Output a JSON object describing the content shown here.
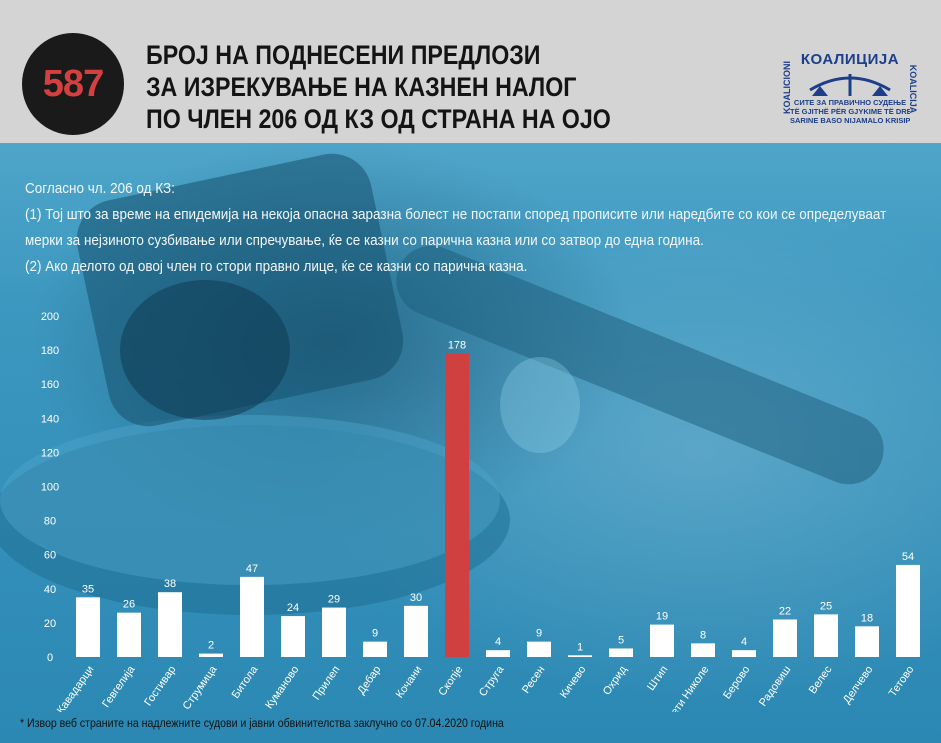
{
  "header": {
    "badge_number": "587",
    "title_lines": [
      "БРОЈ НА ПОДНЕСЕНИ ПРЕДЛОЗИ",
      "ЗА ИЗРЕКУВАЊЕ НА КАЗНЕН НАЛОГ",
      "ПО ЧЛЕН 206 ОД КЗ ОД СТРАНА НА ОЈО"
    ],
    "logo": {
      "name": "КОАЛИЦИЈА",
      "side_left": "KOALICIONI",
      "side_right": "KOALICIJA",
      "tagline_lines": [
        "СИТЕ ЗА ПРАВИЧНО СУДЕЊЕ",
        "TË GJITHË PËR GJYKIME TË DREJTA",
        "SARINE BASO NIJAMALO KRISIPE"
      ]
    }
  },
  "description": {
    "lines": [
      "Согласно чл. 206 од КЗ:",
      "(1) Тој што за време на епидемија на некоја опасна заразна болест не постапи според прописите или наредбите со кои се определуваат",
      "мерки за нејзиното сузбивање или спречување, ќе се казни со парична казна или со затвор до една година.",
      "(2) Ако делото од овој член го стори правно лице, ќе се казни со парична казна."
    ]
  },
  "chart_data": {
    "type": "bar",
    "categories": [
      "Кавадарци",
      "Гевгелија",
      "Гостивар",
      "Струмица",
      "Битола",
      "Куманово",
      "Прилеп",
      "Дебар",
      "Кочани",
      "Скопје",
      "Струга",
      "Ресен",
      "Кичево",
      "Охрид",
      "Штип",
      "Свети Николе",
      "Берово",
      "Радовиш",
      "Велес",
      "Делчево",
      "Тетово"
    ],
    "values": [
      35,
      26,
      38,
      2,
      47,
      24,
      29,
      9,
      30,
      178,
      4,
      9,
      1,
      5,
      19,
      8,
      4,
      22,
      25,
      18,
      54
    ],
    "highlight_index": 9,
    "ylim": [
      0,
      200
    ],
    "yticks": [
      0,
      20,
      40,
      60,
      80,
      100,
      120,
      140,
      160,
      180,
      200
    ],
    "grid": false,
    "colors": {
      "bar": "#ffffff",
      "highlight": "#d04040",
      "text": "#ffffff"
    }
  },
  "footnote": "* Извор веб страните на надлежните судови и јавни обвинителства заклучно со 07.04.2020 година"
}
